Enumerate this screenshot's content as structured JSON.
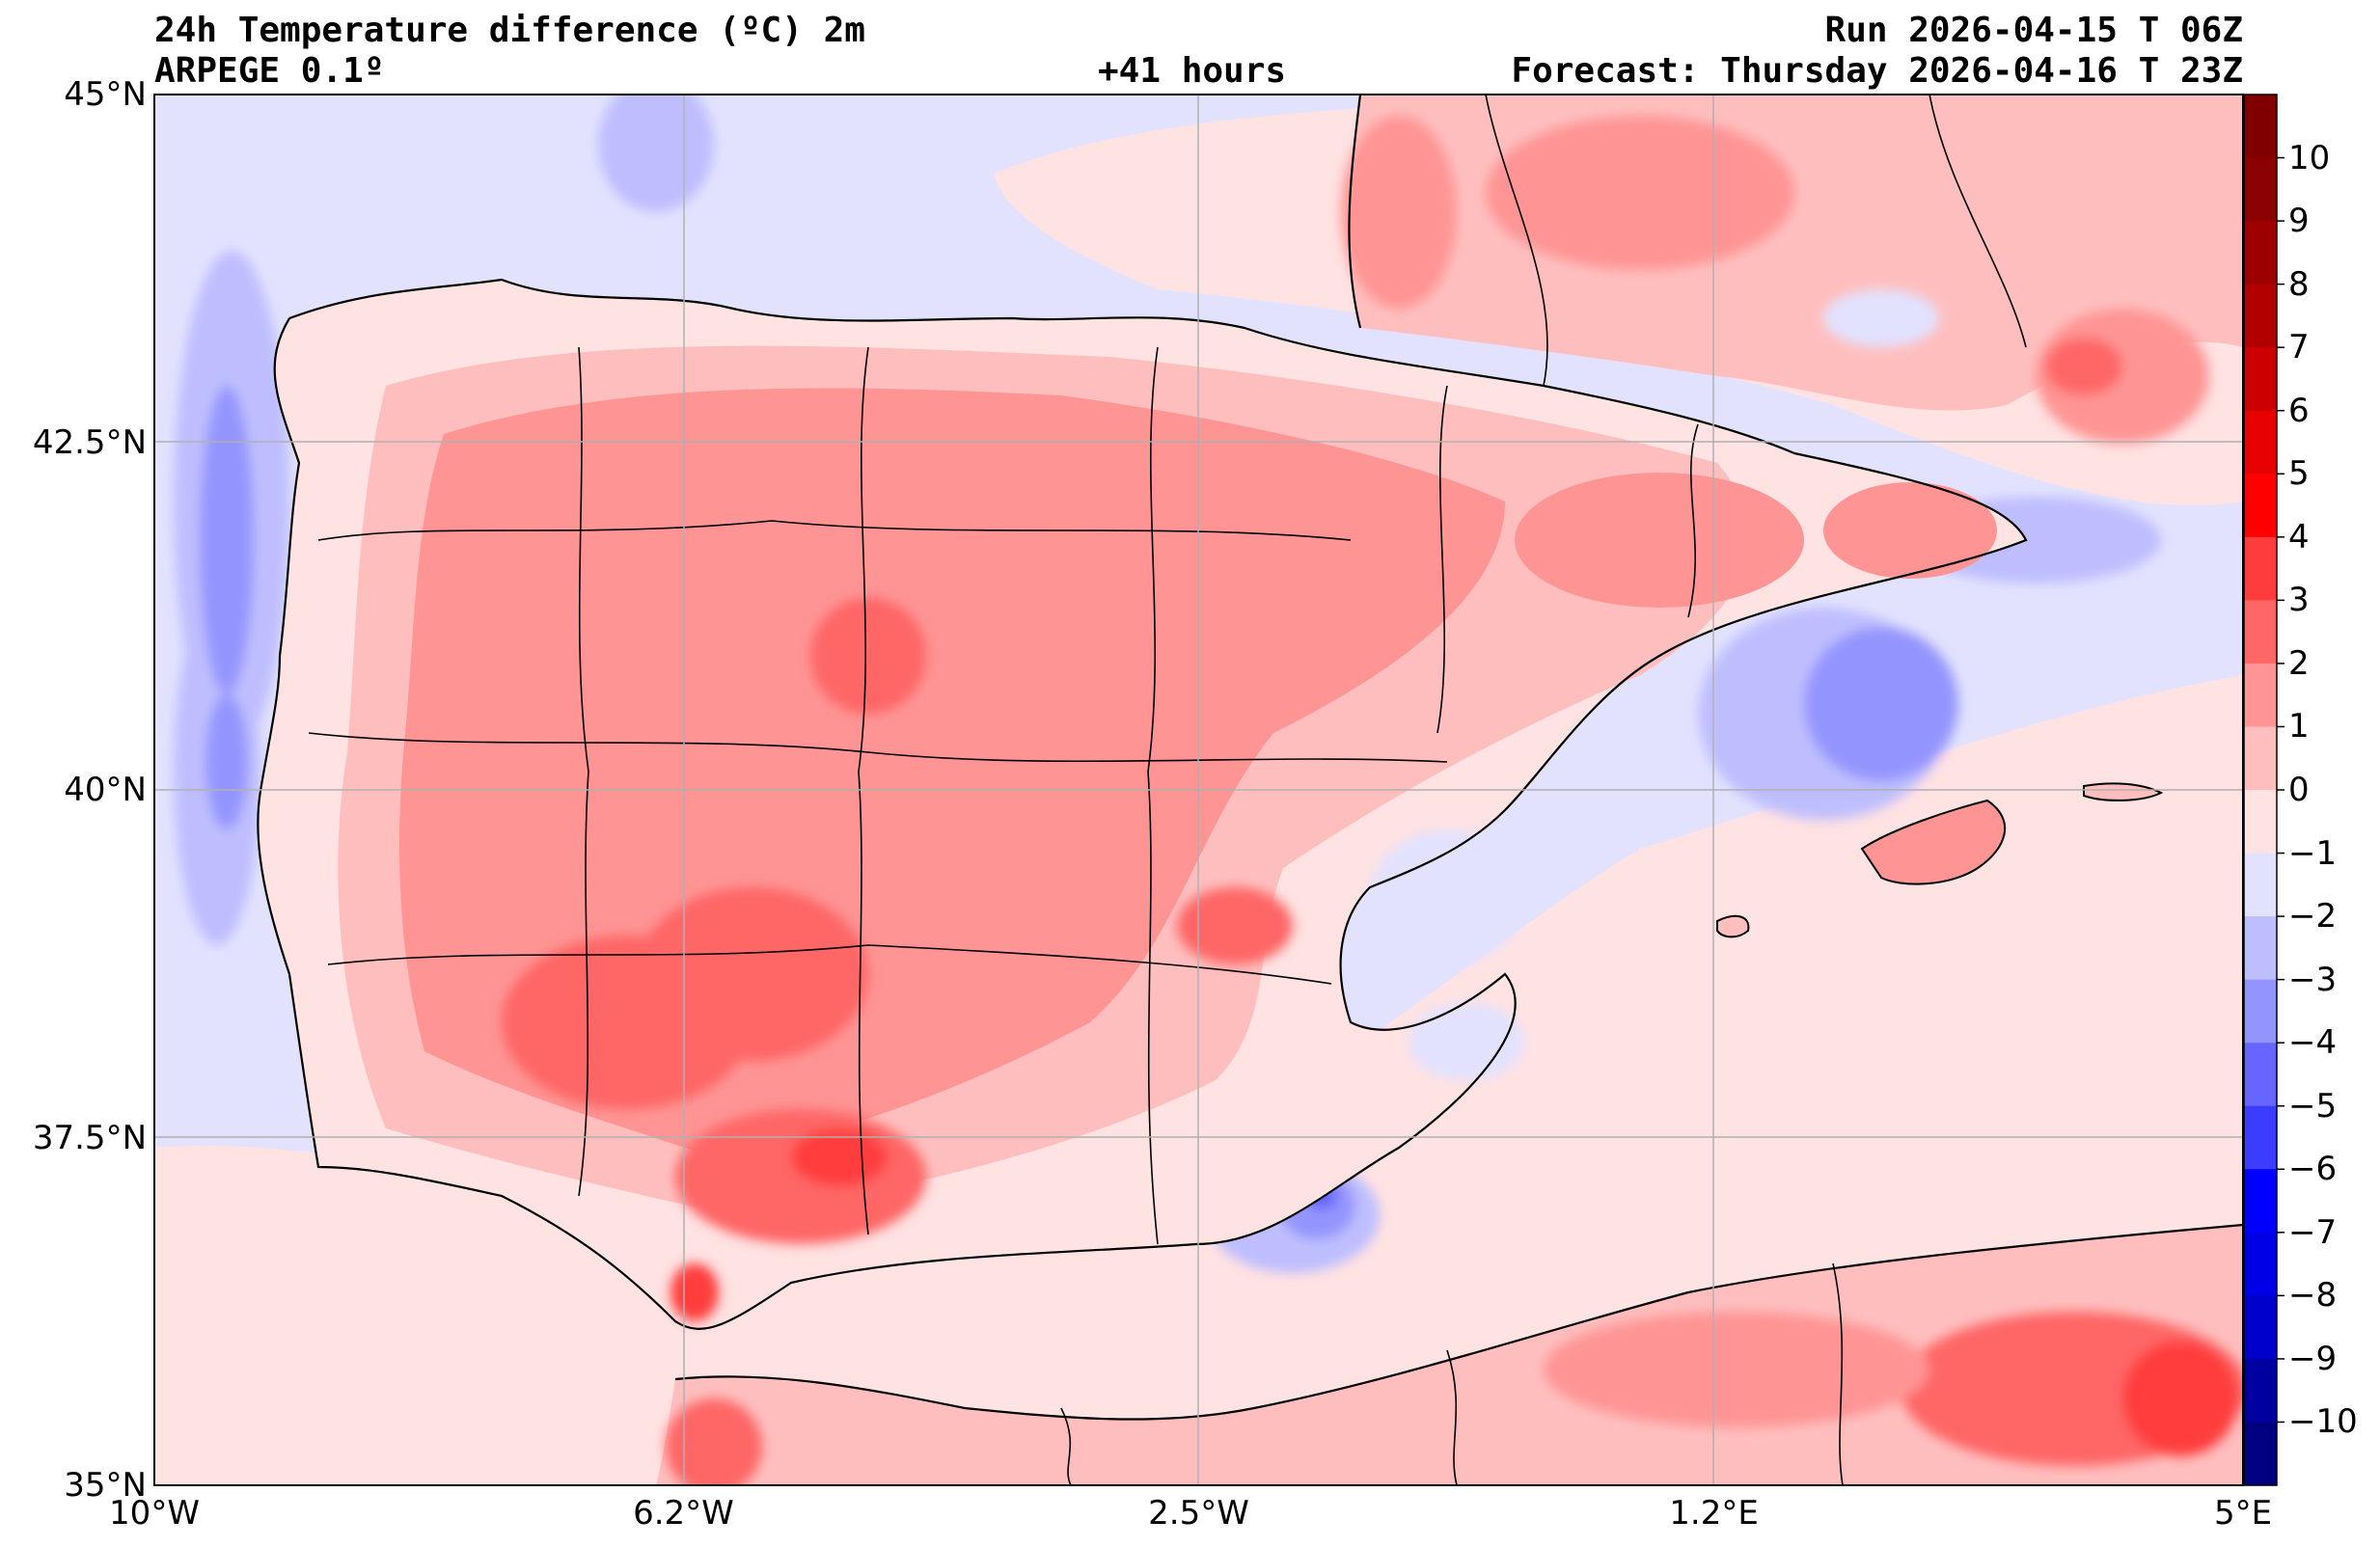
{
  "header": {
    "title": "24h Temperature difference (ºC) 2m",
    "model": "ARPEGE 0.1º",
    "lead_time": "+41 hours",
    "run": "Run 2026-04-15 T 06Z",
    "forecast": "Forecast: Thursday 2026-04-16 T 23Z"
  },
  "map": {
    "region": "Iberian Peninsula and Balearic Islands",
    "lon_range": [
      -10,
      5
    ],
    "lat_range": [
      35,
      45
    ],
    "lon_ticks": [
      {
        "value": -10,
        "label": "10°W"
      },
      {
        "value": -6.2,
        "label": "6.2°W"
      },
      {
        "value": -2.5,
        "label": "2.5°W"
      },
      {
        "value": 1.2,
        "label": "1.2°E"
      },
      {
        "value": 5,
        "label": "5°E"
      }
    ],
    "lat_ticks": [
      {
        "value": 45,
        "label": "45°N"
      },
      {
        "value": 42.5,
        "label": "42.5°N"
      },
      {
        "value": 40,
        "label": "40°N"
      },
      {
        "value": 37.5,
        "label": "37.5°N"
      },
      {
        "value": 35,
        "label": "35°N"
      }
    ],
    "grid": true
  },
  "colorbar": {
    "levels": [
      {
        "value": 10,
        "label": "10"
      },
      {
        "value": 9,
        "label": "9"
      },
      {
        "value": 8,
        "label": "8"
      },
      {
        "value": 7,
        "label": "7"
      },
      {
        "value": 6,
        "label": "6"
      },
      {
        "value": 5,
        "label": "5"
      },
      {
        "value": 4,
        "label": "4"
      },
      {
        "value": 3,
        "label": "3"
      },
      {
        "value": 2,
        "label": "2"
      },
      {
        "value": 1,
        "label": "1"
      },
      {
        "value": 0,
        "label": "0"
      },
      {
        "value": -1,
        "label": "−1"
      },
      {
        "value": -2,
        "label": "−2"
      },
      {
        "value": -3,
        "label": "−3"
      },
      {
        "value": -4,
        "label": "−4"
      },
      {
        "value": -5,
        "label": "−5"
      },
      {
        "value": -6,
        "label": "−6"
      },
      {
        "value": -7,
        "label": "−7"
      },
      {
        "value": -8,
        "label": "−8"
      },
      {
        "value": -9,
        "label": "−9"
      },
      {
        "value": -10,
        "label": "−10"
      }
    ],
    "colors_top_to_bottom": [
      "#800000",
      "#8b0000",
      "#9e0000",
      "#b20000",
      "#cc0000",
      "#e60000",
      "#ff0000",
      "#ff3c3c",
      "#ff6666",
      "#ff9494",
      "#ffbebe",
      "#ffe2e2",
      "#e2e2ff",
      "#bebeff",
      "#9494ff",
      "#6666ff",
      "#3c3cff",
      "#0000ff",
      "#0000e6",
      "#0000cc",
      "#0000a0",
      "#000080"
    ]
  }
}
